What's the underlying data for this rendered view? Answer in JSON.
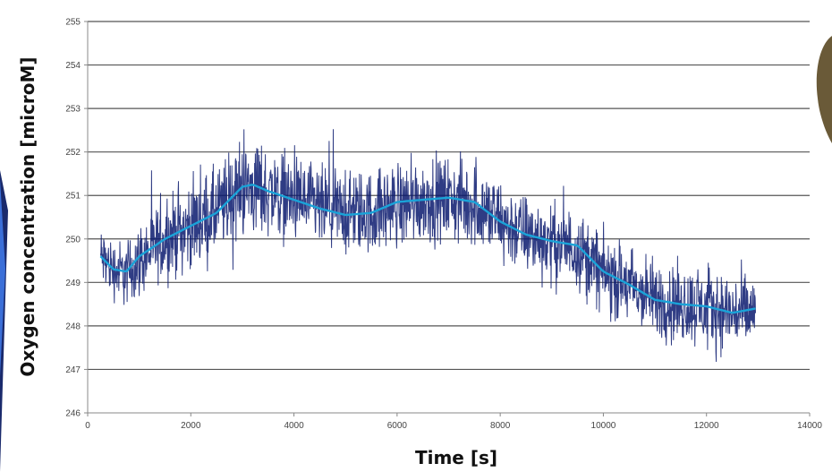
{
  "chart_data": {
    "type": "line",
    "xlabel": "Time [s]",
    "ylabel": "Oxygen concentration [microM]",
    "xlim": [
      0,
      14000
    ],
    "ylim": [
      246,
      255
    ],
    "x_ticks": [
      0,
      2000,
      4000,
      6000,
      8000,
      10000,
      12000,
      14000
    ],
    "y_ticks": [
      246,
      247,
      248,
      249,
      250,
      251,
      252,
      253,
      254,
      255
    ],
    "grid": "horizontal",
    "legend": "none",
    "series": [
      {
        "style": "raw",
        "color": "#0b1a6e",
        "x": [
          250,
          500,
          750,
          1000,
          1500,
          2000,
          2500,
          3000,
          3500,
          4000,
          4500,
          5000,
          5500,
          6000,
          6500,
          7000,
          7500,
          8000,
          8500,
          9000,
          9500,
          10000,
          10500,
          11000,
          11500,
          12000,
          12500,
          12950
        ],
        "values": [
          249.6,
          249.3,
          249.2,
          249.5,
          250.0,
          250.3,
          250.6,
          251.2,
          251.1,
          250.9,
          250.7,
          250.6,
          250.6,
          250.8,
          250.9,
          250.9,
          250.8,
          250.4,
          250.1,
          249.9,
          249.8,
          249.2,
          248.9,
          248.6,
          248.5,
          248.4,
          248.3,
          248.3
        ],
        "band": [
          2.0,
          2.0,
          2.2,
          2.4,
          2.6,
          2.8,
          3.0,
          3.2,
          3.0,
          2.8,
          2.8,
          2.8,
          2.8,
          2.8,
          2.8,
          2.8,
          2.8,
          2.8,
          2.6,
          2.6,
          2.6,
          2.6,
          2.6,
          2.6,
          2.6,
          2.6,
          2.6,
          2.6
        ]
      },
      {
        "style": "smoothed",
        "color": "#1aa3d8",
        "x": [
          250,
          500,
          750,
          1000,
          1500,
          2000,
          2500,
          3000,
          3200,
          3500,
          4000,
          4500,
          5000,
          5500,
          6000,
          6500,
          7000,
          7500,
          8000,
          8500,
          9000,
          9500,
          10000,
          10500,
          11000,
          11500,
          12000,
          12500,
          12950
        ],
        "values": [
          249.6,
          249.3,
          249.25,
          249.6,
          250.0,
          250.3,
          250.6,
          251.2,
          251.25,
          251.1,
          250.9,
          250.7,
          250.55,
          250.6,
          250.85,
          250.9,
          250.95,
          250.85,
          250.4,
          250.1,
          249.95,
          249.85,
          249.25,
          248.95,
          248.6,
          248.5,
          248.45,
          248.3,
          248.4
        ]
      }
    ]
  }
}
